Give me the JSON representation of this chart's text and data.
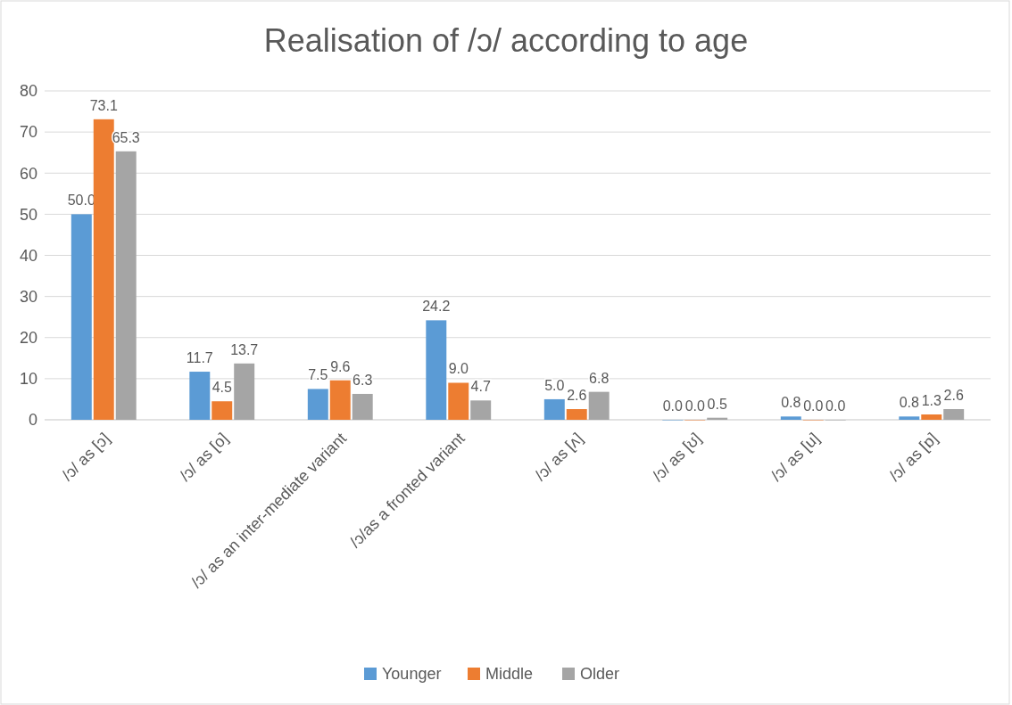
{
  "chart_data": {
    "type": "bar",
    "title": "Realisation of /ɔ/ according to age",
    "categories": [
      "/ɔ/ as [ɔ]",
      "/ɔ/ as [o]",
      "/ɔ/ as an inter-mediate variant",
      "/ɔ/as a fronted variant",
      "/ɔ/ as [ʌ]",
      "/ɔ/ as [ʊ]",
      "/ɔ/ as [u]",
      "/ɔ/ as [ɒ]"
    ],
    "series": [
      {
        "name": "Younger",
        "color": "#5b9bd5",
        "values": [
          50.0,
          11.7,
          7.5,
          24.2,
          5.0,
          0.0,
          0.8,
          0.8
        ],
        "value_labels": [
          "50.0",
          "11.7",
          "7.5",
          "24.2",
          "5.0",
          "0.0",
          "0.8",
          "0.8"
        ]
      },
      {
        "name": "Middle",
        "color": "#ed7d31",
        "values": [
          73.1,
          4.5,
          9.6,
          9.0,
          2.6,
          0.0,
          0.0,
          1.3
        ],
        "value_labels": [
          "73.1",
          "4.5",
          "9.6",
          "9.0",
          "2.6",
          "0.0",
          "0.0",
          "1.3"
        ]
      },
      {
        "name": "Older",
        "color": "#a5a5a5",
        "values": [
          65.3,
          13.7,
          6.3,
          4.7,
          6.8,
          0.5,
          0.0,
          2.6
        ],
        "value_labels": [
          "65.3",
          "13.7",
          "6.3",
          "4.7",
          "6.8",
          "0.5",
          "0.0",
          "2.6"
        ]
      }
    ],
    "ylim": [
      0,
      80
    ],
    "yticks": [
      0,
      10,
      20,
      30,
      40,
      50,
      60,
      70,
      80
    ],
    "grid": "y",
    "legend": "bottom"
  }
}
